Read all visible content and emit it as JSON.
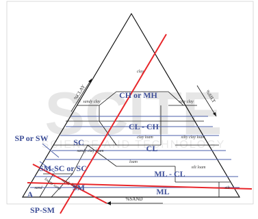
{
  "watermark": {
    "text": "SCITE",
    "subtext": "SCIENCE AND TECHNOLOGY"
  },
  "axes": {
    "clay": "%CLAY",
    "silt": "%SILT",
    "sand": "%SAND"
  },
  "textures": {
    "clay": "clay",
    "sandy_clay": "sandy clay",
    "silty_clay": "silty clay",
    "clay_loam": "clay loam",
    "silty_clay_loam": "silty clay loam",
    "sandy_clay_loam": "sandy clay loam",
    "loam": "loam",
    "silt_loam": "silt loam",
    "sandy_loam": "sandy loam",
    "loamy_sand": "loamy sand",
    "sand": "sand",
    "silt": "silt"
  },
  "classes": {
    "ch_mh": "CH or MH",
    "cl_ch": "CL - CH",
    "cl": "CL",
    "sc": "SC",
    "ml_cl": "ML - CL",
    "ml": "ML",
    "sm_sc": "SM-SC or SC",
    "sm": "SM",
    "sp_sw": "SP or SW",
    "sp_sm": "SP-SM",
    "a_mark": "A"
  },
  "colors": {
    "red_line": "#e8262a",
    "blue_line": "#4a5ea8",
    "label_blue": "#3e4f98"
  }
}
